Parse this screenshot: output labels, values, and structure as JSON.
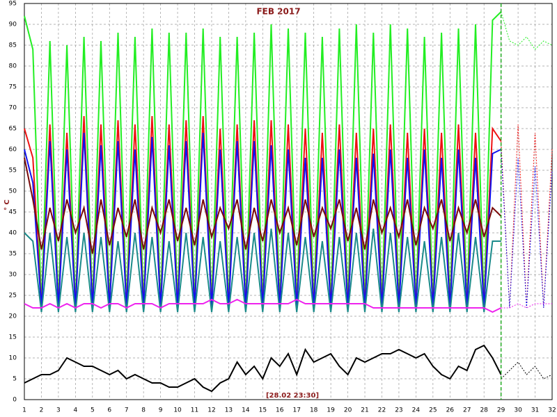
{
  "chart_data": {
    "type": "line",
    "title": "FEB 2017",
    "y_label": "° C",
    "annotation": "[28.02 23:30]",
    "xlim": [
      1,
      32
    ],
    "xticks": [
      1,
      2,
      3,
      4,
      5,
      6,
      7,
      8,
      9,
      10,
      11,
      12,
      13,
      14,
      15,
      16,
      17,
      18,
      19,
      20,
      21,
      22,
      23,
      24,
      25,
      26,
      27,
      28,
      29,
      30,
      31,
      32
    ],
    "ylim": [
      0,
      95
    ],
    "yticks": [
      0,
      5,
      10,
      15,
      20,
      25,
      30,
      35,
      40,
      45,
      50,
      55,
      60,
      65,
      70,
      75,
      80,
      85,
      90,
      95
    ],
    "grid": true,
    "cursor_x": 29,
    "cursor_color": "#22aa22",
    "x": [
      1,
      1.5,
      2,
      2.5,
      3,
      3.5,
      4,
      4.5,
      5,
      5.5,
      6,
      6.5,
      7,
      7.5,
      8,
      8.5,
      9,
      9.5,
      10,
      10.5,
      11,
      11.5,
      12,
      12.5,
      13,
      13.5,
      14,
      14.5,
      15,
      15.5,
      16,
      16.5,
      17,
      17.5,
      18,
      18.5,
      19,
      19.5,
      20,
      20.5,
      21,
      21.5,
      22,
      22.5,
      23,
      23.5,
      24,
      24.5,
      25,
      25.5,
      26,
      26.5,
      27,
      27.5,
      28,
      28.5,
      29
    ],
    "series": [
      {
        "color": "#22ee22",
        "values": [
          92,
          84,
          22,
          86,
          22,
          85,
          22,
          87,
          22,
          86,
          22,
          88,
          22,
          87,
          22,
          89,
          22,
          88,
          22,
          88,
          22,
          89,
          22,
          87,
          22,
          87,
          22,
          88,
          22,
          90,
          22,
          89,
          22,
          88,
          22,
          87,
          22,
          89,
          22,
          90,
          22,
          88,
          22,
          90,
          22,
          89,
          22,
          87,
          22,
          88,
          22,
          89,
          22,
          90,
          22,
          91,
          93
        ]
      },
      {
        "color": "#ee1111",
        "values": [
          65,
          58,
          22,
          66,
          22,
          64,
          22,
          68,
          22,
          66,
          22,
          67,
          22,
          66,
          22,
          68,
          22,
          66,
          22,
          67,
          22,
          68,
          22,
          65,
          22,
          66,
          22,
          67,
          22,
          67,
          22,
          66,
          22,
          65,
          22,
          64,
          22,
          66,
          22,
          64,
          22,
          65,
          22,
          66,
          22,
          64,
          22,
          65,
          22,
          64,
          22,
          66,
          22,
          64,
          22,
          65,
          62
        ]
      },
      {
        "color": "#1111ee",
        "values": [
          60,
          52,
          22,
          62,
          22,
          60,
          22,
          64,
          22,
          61,
          22,
          62,
          22,
          60,
          22,
          63,
          22,
          61,
          22,
          62,
          22,
          64,
          22,
          60,
          22,
          62,
          22,
          62,
          22,
          61,
          22,
          60,
          22,
          58,
          22,
          58,
          22,
          60,
          22,
          58,
          22,
          59,
          22,
          60,
          22,
          58,
          22,
          60,
          22,
          58,
          22,
          60,
          22,
          58,
          22,
          59,
          60
        ]
      },
      {
        "color": "#1a8a8a",
        "values": [
          40,
          38,
          21,
          40,
          21,
          39,
          21,
          40,
          21,
          39,
          21,
          38,
          21,
          40,
          21,
          39,
          21,
          38,
          21,
          40,
          21,
          39,
          21,
          38,
          21,
          39,
          21,
          40,
          21,
          41,
          21,
          40,
          21,
          39,
          21,
          38,
          21,
          39,
          21,
          40,
          21,
          41,
          21,
          40,
          21,
          39,
          21,
          38,
          21,
          39,
          21,
          40,
          21,
          39,
          21,
          38,
          38
        ]
      },
      {
        "color": "#7a0a0a",
        "values": [
          58,
          48,
          36,
          46,
          38,
          48,
          40,
          46,
          35,
          48,
          37,
          46,
          39,
          48,
          36,
          46,
          40,
          48,
          38,
          46,
          37,
          48,
          39,
          46,
          41,
          48,
          36,
          46,
          38,
          48,
          40,
          46,
          37,
          48,
          39,
          46,
          41,
          48,
          38,
          46,
          36,
          48,
          40,
          46,
          39,
          48,
          37,
          46,
          41,
          48,
          38,
          46,
          40,
          48,
          39,
          46,
          44
        ]
      },
      {
        "color": "#ee22ee",
        "values": [
          23,
          22,
          22,
          23,
          22,
          23,
          22,
          23,
          23,
          22,
          23,
          23,
          22,
          23,
          23,
          23,
          22,
          23,
          23,
          23,
          23,
          23,
          24,
          23,
          23,
          24,
          23,
          23,
          23,
          23,
          23,
          23,
          24,
          23,
          23,
          23,
          23,
          23,
          23,
          23,
          23,
          22,
          22,
          22,
          22,
          22,
          22,
          22,
          22,
          22,
          22,
          22,
          22,
          22,
          22,
          21,
          22
        ]
      },
      {
        "color": "#000000",
        "values": [
          4,
          5,
          6,
          6,
          7,
          10,
          9,
          8,
          8,
          7,
          6,
          7,
          5,
          6,
          5,
          4,
          4,
          3,
          3,
          4,
          5,
          3,
          2,
          4,
          5,
          9,
          6,
          8,
          5,
          10,
          8,
          11,
          6,
          12,
          9,
          10,
          11,
          8,
          6,
          10,
          9,
          10,
          11,
          11,
          12,
          11,
          10,
          11,
          8,
          6,
          5,
          8,
          7,
          12,
          13,
          10,
          6
        ]
      },
      {
        "color": "#22ee22",
        "dashed": true,
        "x": [
          29,
          29.5,
          30,
          30.5,
          31,
          31.5,
          32
        ],
        "values": [
          93,
          86,
          85,
          87,
          84,
          86,
          85
        ]
      },
      {
        "color": "#ee1111",
        "dashed": true,
        "x": [
          29,
          29.5,
          30,
          30.5,
          31,
          31.5,
          32
        ],
        "values": [
          62,
          22,
          66,
          22,
          64,
          22,
          60
        ]
      },
      {
        "color": "#1111ee",
        "dashed": true,
        "x": [
          29,
          29.5,
          30,
          30.5,
          31,
          31.5,
          32
        ],
        "values": [
          60,
          22,
          58,
          22,
          56,
          22,
          55
        ]
      },
      {
        "color": "#ee22ee",
        "dashed": true,
        "x": [
          29,
          29.5,
          30,
          30.5,
          31,
          31.5,
          32
        ],
        "values": [
          22,
          22,
          23,
          22,
          23,
          23,
          23
        ]
      },
      {
        "color": "#000000",
        "dashed": true,
        "x": [
          29,
          29.5,
          30,
          30.5,
          31,
          31.5,
          32
        ],
        "values": [
          5,
          7,
          9,
          6,
          8,
          5,
          6
        ]
      }
    ]
  }
}
